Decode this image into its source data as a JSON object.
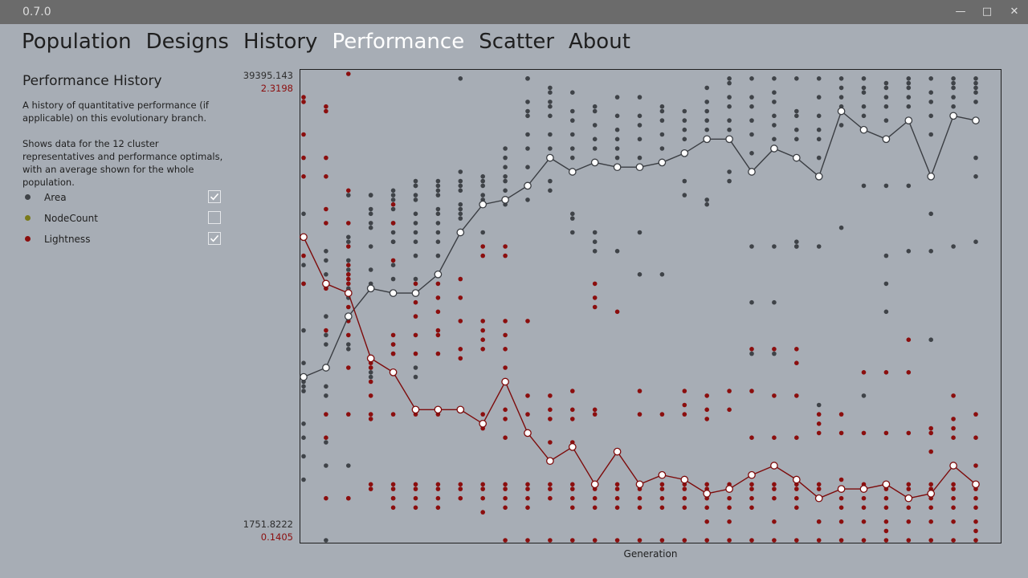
{
  "app": {
    "version": "0.7.0"
  },
  "window_controls": {
    "minimize": "—",
    "maximize": "□",
    "close": "✕"
  },
  "nav": {
    "tabs": [
      {
        "label": "Population",
        "active": false
      },
      {
        "label": "Designs",
        "active": false
      },
      {
        "label": "History",
        "active": false
      },
      {
        "label": "Performance",
        "active": true
      },
      {
        "label": "Scatter",
        "active": false
      },
      {
        "label": "About",
        "active": false
      }
    ]
  },
  "sidebar": {
    "title": "Performance History",
    "description1": "A history of quantitative performance (if applicable) on this evolutionary branch.",
    "description2": "Shows data for the 12 cluster representatives and performance optimals, with an average shown for the whole population.",
    "legend": [
      {
        "label": "Area",
        "color": "#3f4348",
        "checked": true
      },
      {
        "label": "NodeCount",
        "color": "#7a7a1a",
        "checked": false
      },
      {
        "label": "Lightness",
        "color": "#8b0e0e",
        "checked": true
      }
    ]
  },
  "colors": {
    "area": "#3f4348",
    "lightness": "#8b0e0e"
  },
  "chart_data": {
    "type": "scatter",
    "xlabel": "Generation",
    "y_axes": [
      {
        "series": "Area",
        "max_label": "39395.143",
        "min_label": "1751.8222",
        "max": 39395.143,
        "min": 1751.8222
      },
      {
        "series": "Lightness",
        "max_label": "2.3198",
        "min_label": "0.1405",
        "max": 2.3198,
        "min": 0.1405
      }
    ],
    "generations": 31,
    "series": [
      {
        "name": "Area",
        "average": [
          0.35,
          0.37,
          0.48,
          0.54,
          0.53,
          0.53,
          0.57,
          0.66,
          0.72,
          0.73,
          0.76,
          0.82,
          0.79,
          0.81,
          0.8,
          0.8,
          0.81,
          0.83,
          0.86,
          0.86,
          0.79,
          0.84,
          0.82,
          0.78,
          0.92,
          0.88,
          0.86,
          0.9,
          0.78,
          0.91,
          0.9
        ],
        "points": [
          [
            0.32,
            0.34,
            0.38,
            0.45,
            0.55,
            0.59,
            0.7,
            0.18,
            0.13,
            0.22,
            0.25,
            0.33
          ],
          [
            0.31,
            0.33,
            0.48,
            0.42,
            0.44,
            0.55,
            0.21,
            0.16,
            0.0,
            0.6,
            0.62,
            0.57
          ],
          [
            0.48,
            0.52,
            0.54,
            0.58,
            0.64,
            0.65,
            0.6,
            0.42,
            0.41,
            0.74,
            0.16
          ],
          [
            0.54,
            0.55,
            0.58,
            0.63,
            0.67,
            0.68,
            0.7,
            0.71,
            0.74,
            0.74,
            0.37,
            0.35,
            0.36
          ],
          [
            0.56,
            0.59,
            0.64,
            0.68,
            0.71,
            0.73,
            0.74,
            0.75,
            0.64,
            0.66,
            0.42,
            0.4
          ],
          [
            0.56,
            0.61,
            0.64,
            0.66,
            0.68,
            0.7,
            0.73,
            0.74,
            0.76,
            0.76,
            0.77,
            0.37,
            0.35
          ],
          [
            0.57,
            0.61,
            0.64,
            0.66,
            0.68,
            0.7,
            0.71,
            0.74,
            0.75,
            0.76,
            0.77
          ],
          [
            0.66,
            0.72,
            0.75,
            0.76,
            0.77,
            0.79,
            0.99,
            0.71,
            0.7,
            0.69
          ],
          [
            0.72,
            0.74,
            0.76,
            0.78,
            0.77,
            0.73,
            0.66
          ],
          [
            0.75,
            0.78,
            0.8,
            0.82,
            0.84,
            0.72,
            0.77
          ],
          [
            0.76,
            0.8,
            0.84,
            0.87,
            0.91,
            0.92,
            0.99,
            0.99,
            0.94,
            0.73
          ],
          [
            0.82,
            0.84,
            0.87,
            0.91,
            0.93,
            0.94,
            0.96,
            0.97,
            0.77,
            0.75
          ],
          [
            0.79,
            0.82,
            0.84,
            0.87,
            0.9,
            0.92,
            0.96,
            0.7,
            0.69,
            0.66
          ],
          [
            0.81,
            0.84,
            0.86,
            0.89,
            0.92,
            0.93,
            0.66,
            0.64,
            0.62
          ],
          [
            0.8,
            0.82,
            0.84,
            0.86,
            0.88,
            0.91,
            0.95,
            0.62
          ],
          [
            0.8,
            0.82,
            0.86,
            0.89,
            0.91,
            0.95,
            0.66,
            0.57
          ],
          [
            0.81,
            0.84,
            0.87,
            0.9,
            0.92,
            0.93,
            0.57
          ],
          [
            0.83,
            0.86,
            0.88,
            0.9,
            0.92,
            0.74,
            0.77
          ],
          [
            0.86,
            0.88,
            0.9,
            0.92,
            0.94,
            0.97,
            0.73,
            0.72
          ],
          [
            0.86,
            0.88,
            0.9,
            0.93,
            0.95,
            0.98,
            0.99,
            0.77,
            0.79
          ],
          [
            0.79,
            0.83,
            0.87,
            0.9,
            0.93,
            0.95,
            0.99,
            0.63,
            0.51,
            0.4
          ],
          [
            0.84,
            0.86,
            0.89,
            0.91,
            0.94,
            0.96,
            0.99,
            0.63,
            0.51,
            0.4
          ],
          [
            0.82,
            0.86,
            0.88,
            0.91,
            0.92,
            0.99,
            0.63,
            0.64,
            0.63
          ],
          [
            0.78,
            0.82,
            0.86,
            0.88,
            0.91,
            0.95,
            0.99,
            0.63,
            0.29,
            0.04
          ],
          [
            0.92,
            0.95,
            0.97,
            0.99,
            0.89,
            0.93,
            0.67
          ],
          [
            0.88,
            0.91,
            0.93,
            0.96,
            0.97,
            0.99,
            0.76,
            0.31
          ],
          [
            0.86,
            0.9,
            0.93,
            0.95,
            0.97,
            0.98,
            0.76,
            0.61,
            0.55,
            0.49
          ],
          [
            0.9,
            0.93,
            0.95,
            0.97,
            0.98,
            0.99,
            0.76,
            0.62
          ],
          [
            0.78,
            0.87,
            0.91,
            0.94,
            0.96,
            0.99,
            0.7,
            0.62,
            0.43
          ],
          [
            0.91,
            0.93,
            0.95,
            0.97,
            0.99,
            0.98,
            0.63
          ],
          [
            0.9,
            0.94,
            0.96,
            0.97,
            0.99,
            0.98,
            0.82,
            0.78,
            0.64
          ]
        ]
      },
      {
        "name": "Lightness",
        "average": [
          0.65,
          0.55,
          0.53,
          0.39,
          0.36,
          0.28,
          0.28,
          0.28,
          0.25,
          0.34,
          0.23,
          0.17,
          0.2,
          0.12,
          0.19,
          0.12,
          0.14,
          0.13,
          0.1,
          0.11,
          0.14,
          0.16,
          0.13,
          0.09,
          0.11,
          0.11,
          0.12,
          0.09,
          0.1,
          0.16,
          0.12
        ],
        "points": [
          [
            0.95,
            0.94,
            0.87,
            0.82,
            0.78,
            0.61,
            0.55
          ],
          [
            0.93,
            0.92,
            0.82,
            0.78,
            0.71,
            0.68,
            0.54,
            0.55,
            0.54,
            0.45,
            0.27,
            0.22,
            0.09
          ],
          [
            1.0,
            0.75,
            0.68,
            0.63,
            0.59,
            0.57,
            0.57,
            0.56,
            0.55,
            0.5,
            0.47,
            0.44,
            0.37,
            0.27,
            0.09,
            0.09
          ],
          [
            0.38,
            0.37,
            0.34,
            0.31,
            0.27,
            0.26,
            0.12,
            0.11
          ],
          [
            0.72,
            0.68,
            0.6,
            0.53,
            0.44,
            0.42,
            0.4,
            0.36,
            0.27,
            0.12,
            0.11,
            0.09,
            0.09,
            0.07
          ],
          [
            0.55,
            0.53,
            0.51,
            0.48,
            0.44,
            0.4,
            0.27,
            0.12,
            0.11,
            0.09,
            0.07
          ],
          [
            0.55,
            0.52,
            0.49,
            0.45,
            0.44,
            0.4,
            0.27,
            0.12,
            0.11,
            0.09,
            0.07
          ],
          [
            0.56,
            0.52,
            0.47,
            0.41,
            0.39,
            0.28,
            0.12,
            0.11,
            0.09
          ],
          [
            0.63,
            0.61,
            0.47,
            0.45,
            0.43,
            0.41,
            0.27,
            0.24,
            0.12,
            0.11,
            0.09,
            0.06
          ],
          [
            0.63,
            0.61,
            0.47,
            0.44,
            0.41,
            0.37,
            0.28,
            0.26,
            0.22,
            0.12,
            0.11,
            0.09,
            0.07,
            0.0
          ],
          [
            0.47,
            0.31,
            0.27,
            0.12,
            0.11,
            0.09,
            0.07,
            0.0
          ],
          [
            0.31,
            0.28,
            0.26,
            0.21,
            0.12,
            0.11,
            0.09,
            0.0
          ],
          [
            0.32,
            0.28,
            0.26,
            0.21,
            0.12,
            0.11,
            0.09,
            0.07,
            0.0
          ],
          [
            0.55,
            0.52,
            0.5,
            0.28,
            0.27,
            0.11,
            0.09,
            0.07,
            0.0
          ],
          [
            0.49,
            0.12,
            0.11,
            0.09,
            0.07,
            0.0
          ],
          [
            0.32,
            0.27,
            0.11,
            0.09,
            0.07,
            0.0
          ],
          [
            0.27,
            0.12,
            0.11,
            0.09,
            0.07,
            0.0
          ],
          [
            0.32,
            0.29,
            0.27,
            0.12,
            0.11,
            0.09,
            0.07,
            0.0
          ],
          [
            0.31,
            0.28,
            0.26,
            0.12,
            0.11,
            0.09,
            0.07,
            0.04,
            0.0
          ],
          [
            0.32,
            0.28,
            0.12,
            0.11,
            0.09,
            0.07,
            0.04,
            0.0
          ],
          [
            0.41,
            0.32,
            0.22,
            0.12,
            0.11,
            0.09,
            0.07,
            0.0
          ],
          [
            0.41,
            0.31,
            0.22,
            0.12,
            0.11,
            0.09,
            0.04,
            0.0
          ],
          [
            0.41,
            0.38,
            0.31,
            0.22,
            0.12,
            0.11,
            0.09,
            0.07,
            0.0
          ],
          [
            0.27,
            0.25,
            0.23,
            0.12,
            0.11,
            0.09,
            0.04,
            0.0
          ],
          [
            0.27,
            0.23,
            0.13,
            0.11,
            0.09,
            0.07,
            0.04,
            0.0
          ],
          [
            0.36,
            0.23,
            0.12,
            0.11,
            0.09,
            0.07,
            0.04,
            0.0
          ],
          [
            0.36,
            0.23,
            0.12,
            0.11,
            0.09,
            0.07,
            0.04,
            0.02,
            0.0
          ],
          [
            0.43,
            0.36,
            0.23,
            0.12,
            0.11,
            0.09,
            0.07,
            0.04,
            0.0
          ],
          [
            0.24,
            0.23,
            0.19,
            0.12,
            0.11,
            0.09,
            0.07,
            0.04,
            0.0
          ],
          [
            0.31,
            0.26,
            0.24,
            0.22,
            0.12,
            0.11,
            0.09,
            0.07,
            0.04,
            0.0
          ],
          [
            0.27,
            0.22,
            0.16,
            0.12,
            0.11,
            0.09,
            0.07,
            0.04,
            0.02,
            0.0
          ]
        ]
      }
    ]
  }
}
